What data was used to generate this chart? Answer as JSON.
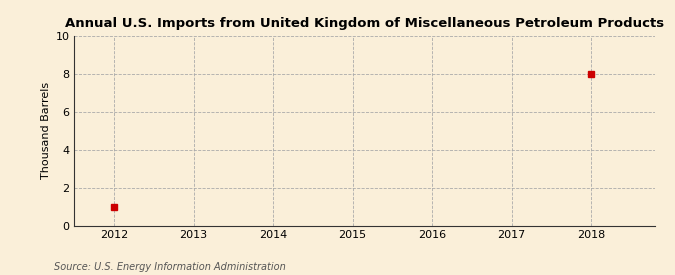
{
  "title": "Annual U.S. Imports from United Kingdom of Miscellaneous Petroleum Products",
  "ylabel": "Thousand Barrels",
  "source": "Source: U.S. Energy Information Administration",
  "x_data": [
    2012,
    2018
  ],
  "y_data": [
    1,
    8
  ],
  "marker_color": "#cc0000",
  "marker_style": "s",
  "marker_size": 4,
  "xlim": [
    2011.5,
    2018.8
  ],
  "ylim": [
    0,
    10
  ],
  "yticks": [
    0,
    2,
    4,
    6,
    8,
    10
  ],
  "xticks": [
    2012,
    2013,
    2014,
    2015,
    2016,
    2017,
    2018
  ],
  "background_color": "#faefd9",
  "plot_bg_color": "#faefd9",
  "grid_color": "#aaaaaa",
  "title_fontsize": 9.5,
  "label_fontsize": 8,
  "source_fontsize": 7,
  "tick_fontsize": 8,
  "spine_color": "#333333"
}
